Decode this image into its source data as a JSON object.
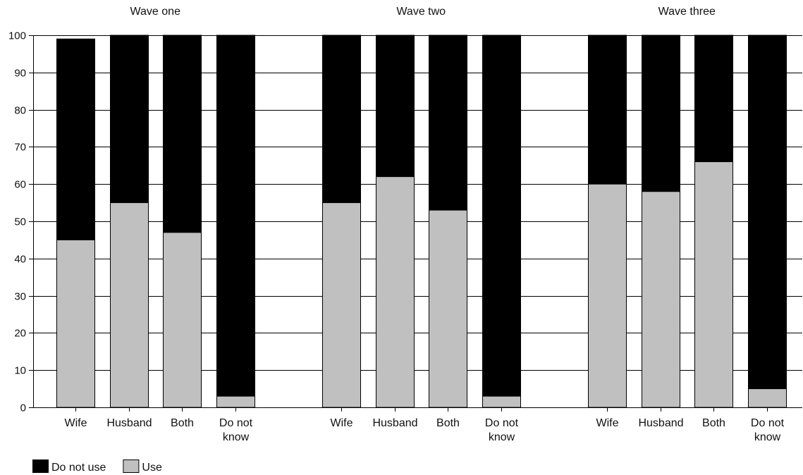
{
  "chart_data": {
    "type": "bar",
    "stacked": true,
    "ylim": [
      0,
      100
    ],
    "yticks": [
      0,
      10,
      20,
      30,
      40,
      50,
      60,
      70,
      80,
      90,
      100
    ],
    "grid": true,
    "categories": [
      "Wife",
      "Husband",
      "Both",
      "Do not know"
    ],
    "category_tick_labels": [
      [
        "Wife"
      ],
      [
        "Husband"
      ],
      [
        "Both"
      ],
      [
        "Do not",
        "know"
      ]
    ],
    "panels": [
      {
        "title": "Wave one",
        "series": [
          {
            "name": "Use",
            "values": [
              45,
              55,
              47,
              3
            ]
          },
          {
            "name": "Do not use",
            "values": [
              54,
              45,
              53,
              97
            ]
          }
        ]
      },
      {
        "title": "Wave two",
        "series": [
          {
            "name": "Use",
            "values": [
              55,
              62,
              53,
              3
            ]
          },
          {
            "name": "Do not use",
            "values": [
              45,
              38,
              47,
              97
            ]
          }
        ]
      },
      {
        "title": "Wave three",
        "series": [
          {
            "name": "Use",
            "values": [
              60,
              58,
              66,
              5
            ]
          },
          {
            "name": "Do not use",
            "values": [
              40,
              42,
              34,
              95
            ]
          }
        ]
      }
    ],
    "legend": {
      "placement": "bottom-left",
      "entries": [
        {
          "name": "Do not use",
          "color": "#000000"
        },
        {
          "name": "Use",
          "color": "#c0c0c0"
        }
      ]
    },
    "colors": {
      "Use": "#c0c0c0",
      "Do not use": "#000000"
    }
  }
}
